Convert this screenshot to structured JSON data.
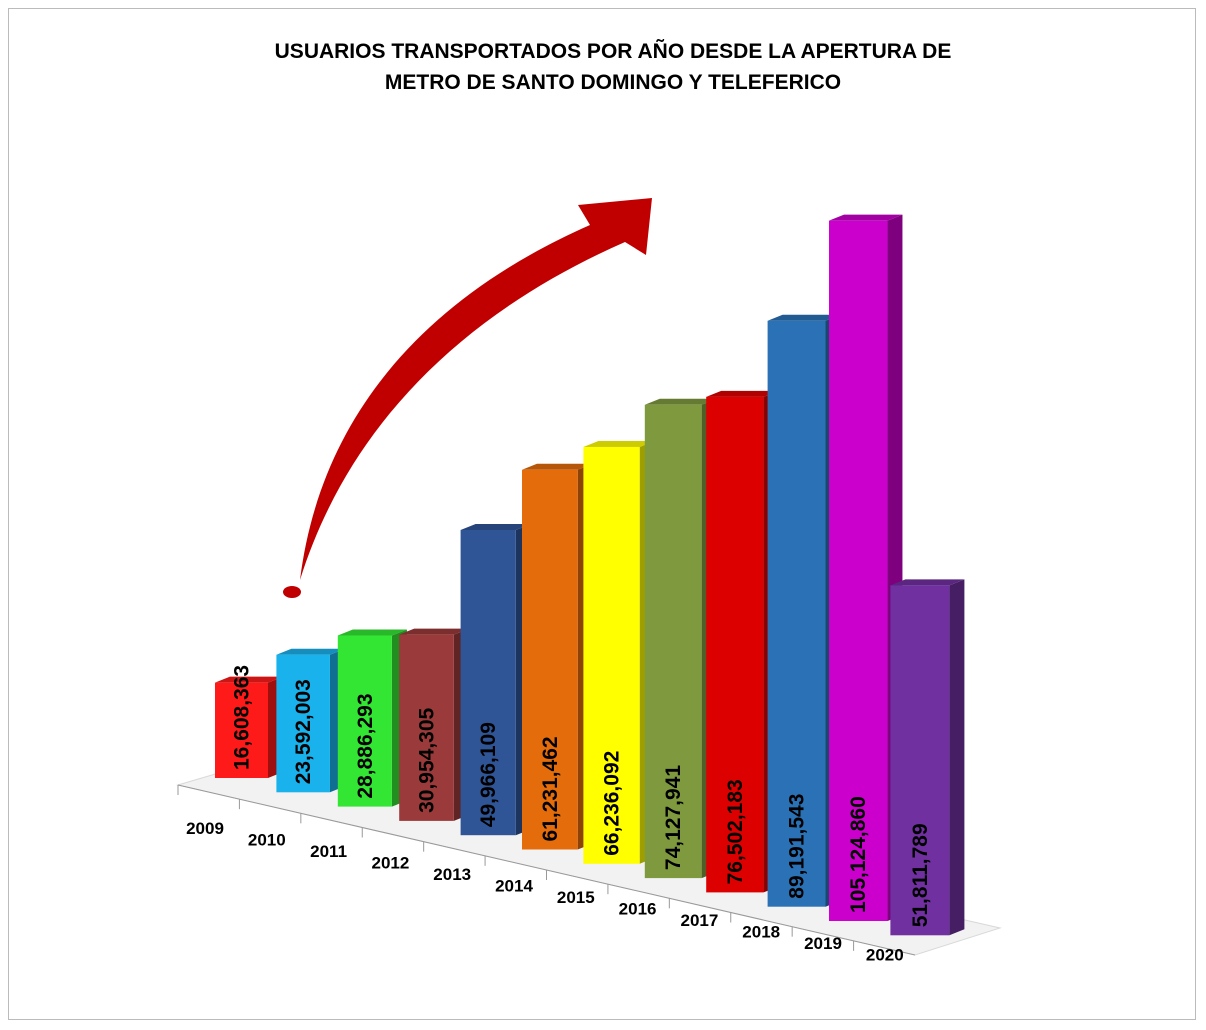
{
  "chart_data": {
    "type": "bar3d",
    "title": "USUARIOS TRANSPORTADOS POR AÑO DESDE LA APERTURA DE METRO DE SANTO DOMINGO Y TELEFERICO",
    "categories": [
      "2009",
      "2010",
      "2011",
      "2012",
      "2013",
      "2014",
      "2015",
      "2016",
      "2017",
      "2018",
      "2019",
      "2020"
    ],
    "values": [
      16608363,
      23592003,
      28886293,
      30954305,
      49966109,
      61231462,
      66236092,
      74127941,
      76502183,
      89191543,
      105124860,
      51811789
    ],
    "value_labels": [
      "16,608,363",
      "23,592,003",
      "28,886,293",
      "30,954,305",
      "49,966,109",
      "61,231,462",
      "66,236,092",
      "74,127,941",
      "76,502,183",
      "89,191,543",
      "105,124,860",
      "51,811,789"
    ],
    "colors": [
      "#ff1a1a",
      "#1ab2ec",
      "#33e633",
      "#9b3a3a",
      "#2f5597",
      "#e46c0a",
      "#ffff00",
      "#7f9a3e",
      "#dd0000",
      "#2a72b5",
      "#cc00cc",
      "#7030a0"
    ]
  }
}
